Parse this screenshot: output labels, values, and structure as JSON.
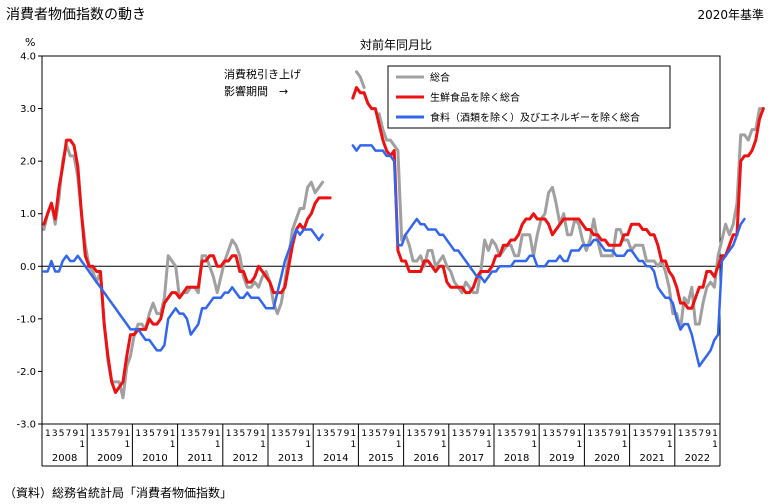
{
  "title": "消費者物価指数の動き",
  "base_year": "2020年基準",
  "source": "（資料）総務省統計局「消費者物価指数」",
  "chart_data": {
    "type": "line",
    "title": "対前年同月比",
    "ylabel": "%",
    "ylim": [
      -3.0,
      4.0
    ],
    "yticks": [
      "4.0",
      "3.0",
      "2.0",
      "1.0",
      "0.0",
      "-1.0",
      "-2.0",
      "-3.0"
    ],
    "years": [
      "2008",
      "2009",
      "2010",
      "2011",
      "2012",
      "2013",
      "2014",
      "2015",
      "2016",
      "2017",
      "2018",
      "2019",
      "2020",
      "2021",
      "2022"
    ],
    "month_ticks": [
      "1",
      "3",
      "5",
      "7",
      "9",
      "1",
      "1"
    ],
    "annotation": [
      "消費税引き上げ",
      "影響期間　→"
    ],
    "gap_ranges": [
      [
        75,
        83
      ],
      [
        86,
        88
      ]
    ],
    "series": [
      {
        "name": "総合",
        "color": "#a0a0a0",
        "values": [
          0.7,
          1.0,
          1.2,
          0.8,
          1.3,
          2.0,
          2.3,
          2.1,
          2.1,
          1.7,
          1.0,
          0.4,
          0.0,
          -0.1,
          -0.3,
          -0.1,
          -1.1,
          -1.8,
          -2.2,
          -2.2,
          -2.2,
          -2.5,
          -1.9,
          -1.7,
          -1.3,
          -1.1,
          -1.1,
          -1.2,
          -0.9,
          -0.7,
          -0.9,
          -0.9,
          -0.6,
          0.2,
          0.1,
          0.0,
          -0.6,
          -0.5,
          -0.5,
          -0.4,
          -0.4,
          -0.5,
          0.2,
          0.2,
          0.0,
          -0.2,
          -0.5,
          -0.2,
          0.1,
          0.3,
          0.5,
          0.4,
          0.2,
          -0.2,
          -0.4,
          -0.4,
          -0.3,
          -0.4,
          -0.2,
          -0.1,
          -0.3,
          -0.7,
          -0.9,
          -0.7,
          -0.3,
          0.2,
          0.7,
          0.9,
          1.1,
          1.1,
          1.5,
          1.6,
          1.4,
          1.5,
          1.6,
          null,
          null,
          null,
          null,
          null,
          null,
          null,
          null,
          3.7,
          3.6,
          3.4,
          null,
          null,
          null,
          2.9,
          2.6,
          2.4,
          2.4,
          2.3,
          2.2,
          0.5,
          0.6,
          0.4,
          0.1,
          0.1,
          0.2,
          0.0,
          0.3,
          0.3,
          0.0,
          0.1,
          0.2,
          0.0,
          -0.1,
          -0.3,
          -0.4,
          -0.5,
          -0.3,
          -0.4,
          -0.5,
          -0.5,
          -0.1,
          0.5,
          0.3,
          0.5,
          0.4,
          0.2,
          0.3,
          0.4,
          0.4,
          0.2,
          0.2,
          0.6,
          0.6,
          0.6,
          0.2,
          0.6,
          0.9,
          1.0,
          1.4,
          1.5,
          1.2,
          0.8,
          1.0,
          0.6,
          0.6,
          0.9,
          0.8,
          0.5,
          0.3,
          0.5,
          0.9,
          0.5,
          0.2,
          0.2,
          0.2,
          0.2,
          0.7,
          0.7,
          0.5,
          0.5,
          0.3,
          0.4,
          0.4,
          0.4,
          0.1,
          0.1,
          0.1,
          0.0,
          0.1,
          -0.1,
          -0.4,
          -0.9,
          -0.9,
          -1.2,
          -0.6,
          -0.7,
          -0.4,
          -1.1,
          -1.1,
          -0.7,
          -0.4,
          -0.3,
          -0.4,
          0.2,
          0.5,
          0.8,
          0.6,
          0.8,
          1.2,
          2.5,
          2.5,
          2.4,
          2.6,
          2.6,
          3.0,
          3.0
        ]
      },
      {
        "name": "生鮮食品を除く総合",
        "color": "#ee1111",
        "values": [
          0.8,
          1.0,
          1.2,
          0.9,
          1.5,
          1.9,
          2.4,
          2.4,
          2.3,
          1.9,
          1.0,
          0.2,
          0.0,
          0.0,
          -0.1,
          -0.1,
          -1.1,
          -1.7,
          -2.2,
          -2.4,
          -2.3,
          -2.2,
          -1.7,
          -1.3,
          -1.3,
          -1.2,
          -1.2,
          -1.2,
          -1.0,
          -1.1,
          -1.1,
          -1.0,
          -0.7,
          -0.6,
          -0.5,
          -0.5,
          -0.6,
          -0.5,
          -0.4,
          -0.4,
          -0.4,
          -0.4,
          0.1,
          0.1,
          0.2,
          0.2,
          0.0,
          0.0,
          0.1,
          0.1,
          0.2,
          0.2,
          -0.1,
          -0.1,
          -0.3,
          -0.3,
          -0.2,
          0.0,
          -0.1,
          -0.2,
          -0.3,
          -0.5,
          -0.5,
          -0.5,
          -0.4,
          0.0,
          0.4,
          0.7,
          0.8,
          0.7,
          0.9,
          1.0,
          1.2,
          1.3,
          1.3,
          1.3,
          1.3,
          null,
          null,
          null,
          null,
          null,
          3.2,
          3.4,
          3.3,
          3.3,
          3.1,
          3.0,
          3.0,
          2.7,
          2.4,
          2.2,
          2.1,
          2.2,
          0.3,
          0.1,
          0.1,
          -0.1,
          -0.1,
          -0.1,
          -0.1,
          0.1,
          0.1,
          0.0,
          -0.1,
          0.0,
          0.0,
          -0.3,
          -0.4,
          -0.4,
          -0.4,
          -0.4,
          -0.5,
          -0.5,
          -0.4,
          -0.2,
          -0.1,
          -0.1,
          -0.1,
          0.0,
          0.2,
          0.2,
          0.4,
          0.4,
          0.5,
          0.5,
          0.6,
          0.8,
          0.9,
          0.9,
          1.0,
          0.9,
          0.9,
          0.9,
          0.8,
          0.6,
          0.7,
          0.8,
          0.9,
          0.9,
          0.9,
          0.9,
          0.9,
          0.8,
          0.7,
          0.7,
          0.6,
          0.6,
          0.5,
          0.5,
          0.4,
          0.4,
          0.4,
          0.4,
          0.6,
          0.6,
          0.8,
          0.8,
          0.8,
          0.7,
          0.7,
          0.6,
          0.6,
          0.4,
          0.1,
          0.1,
          -0.1,
          -0.2,
          -0.4,
          -0.7,
          -0.7,
          -0.8,
          -0.8,
          -0.6,
          -0.4,
          -0.4,
          -0.1,
          -0.1,
          -0.2,
          0.0,
          0.2,
          0.2,
          0.4,
          0.6,
          0.6,
          2.0,
          2.1,
          2.1,
          2.2,
          2.4,
          2.8,
          3.0
        ]
      },
      {
        "name": "食料（酒類を除く）及びエネルギーを除く総合",
        "color": "#3366ee",
        "values": [
          -0.1,
          -0.1,
          0.1,
          -0.1,
          -0.1,
          0.1,
          0.2,
          0.1,
          0.1,
          0.2,
          0.1,
          0.0,
          -0.1,
          -0.2,
          -0.3,
          -0.4,
          -0.5,
          -0.6,
          -0.7,
          -0.8,
          -0.9,
          -1.0,
          -1.1,
          -1.2,
          -1.2,
          -1.2,
          -1.3,
          -1.4,
          -1.4,
          -1.5,
          -1.6,
          -1.6,
          -1.5,
          -1.0,
          -0.9,
          -0.8,
          -0.9,
          -0.9,
          -1.0,
          -1.3,
          -1.2,
          -1.1,
          -0.8,
          -0.8,
          -0.7,
          -0.6,
          -0.6,
          -0.6,
          -0.5,
          -0.5,
          -0.4,
          -0.5,
          -0.6,
          -0.6,
          -0.5,
          -0.6,
          -0.6,
          -0.6,
          -0.7,
          -0.8,
          -0.8,
          -0.8,
          -0.5,
          -0.2,
          0.1,
          0.3,
          0.5,
          0.7,
          0.6,
          0.7,
          0.7,
          0.7,
          0.6,
          0.5,
          0.6,
          null,
          null,
          null,
          null,
          null,
          null,
          null,
          2.3,
          2.2,
          2.3,
          2.3,
          2.3,
          2.3,
          2.2,
          2.2,
          2.2,
          2.1,
          2.1,
          2.0,
          0.4,
          0.4,
          0.6,
          0.7,
          0.8,
          0.9,
          0.8,
          0.8,
          0.7,
          0.7,
          0.7,
          0.6,
          0.6,
          0.5,
          0.4,
          0.3,
          0.3,
          0.2,
          0.1,
          0.0,
          -0.1,
          -0.2,
          -0.2,
          -0.3,
          -0.2,
          -0.1,
          -0.1,
          0.0,
          0.0,
          0.0,
          0.0,
          0.1,
          0.1,
          0.1,
          0.1,
          0.2,
          0.2,
          0.0,
          0.0,
          0.0,
          0.1,
          0.1,
          0.1,
          0.2,
          0.1,
          0.1,
          0.3,
          0.3,
          0.3,
          0.4,
          0.4,
          0.4,
          0.5,
          0.5,
          0.4,
          0.3,
          0.3,
          0.3,
          0.2,
          0.2,
          0.2,
          0.3,
          0.3,
          0.2,
          0.1,
          0.1,
          0.0,
          0.0,
          -0.1,
          -0.4,
          -0.5,
          -0.6,
          -0.6,
          -0.7,
          -1.0,
          -1.2,
          -1.1,
          -1.1,
          -1.3,
          -1.6,
          -1.9,
          -1.8,
          -1.7,
          -1.6,
          -1.4,
          -1.3,
          0.1,
          0.2,
          0.3,
          0.4,
          0.6,
          0.8,
          0.9
        ]
      }
    ]
  }
}
